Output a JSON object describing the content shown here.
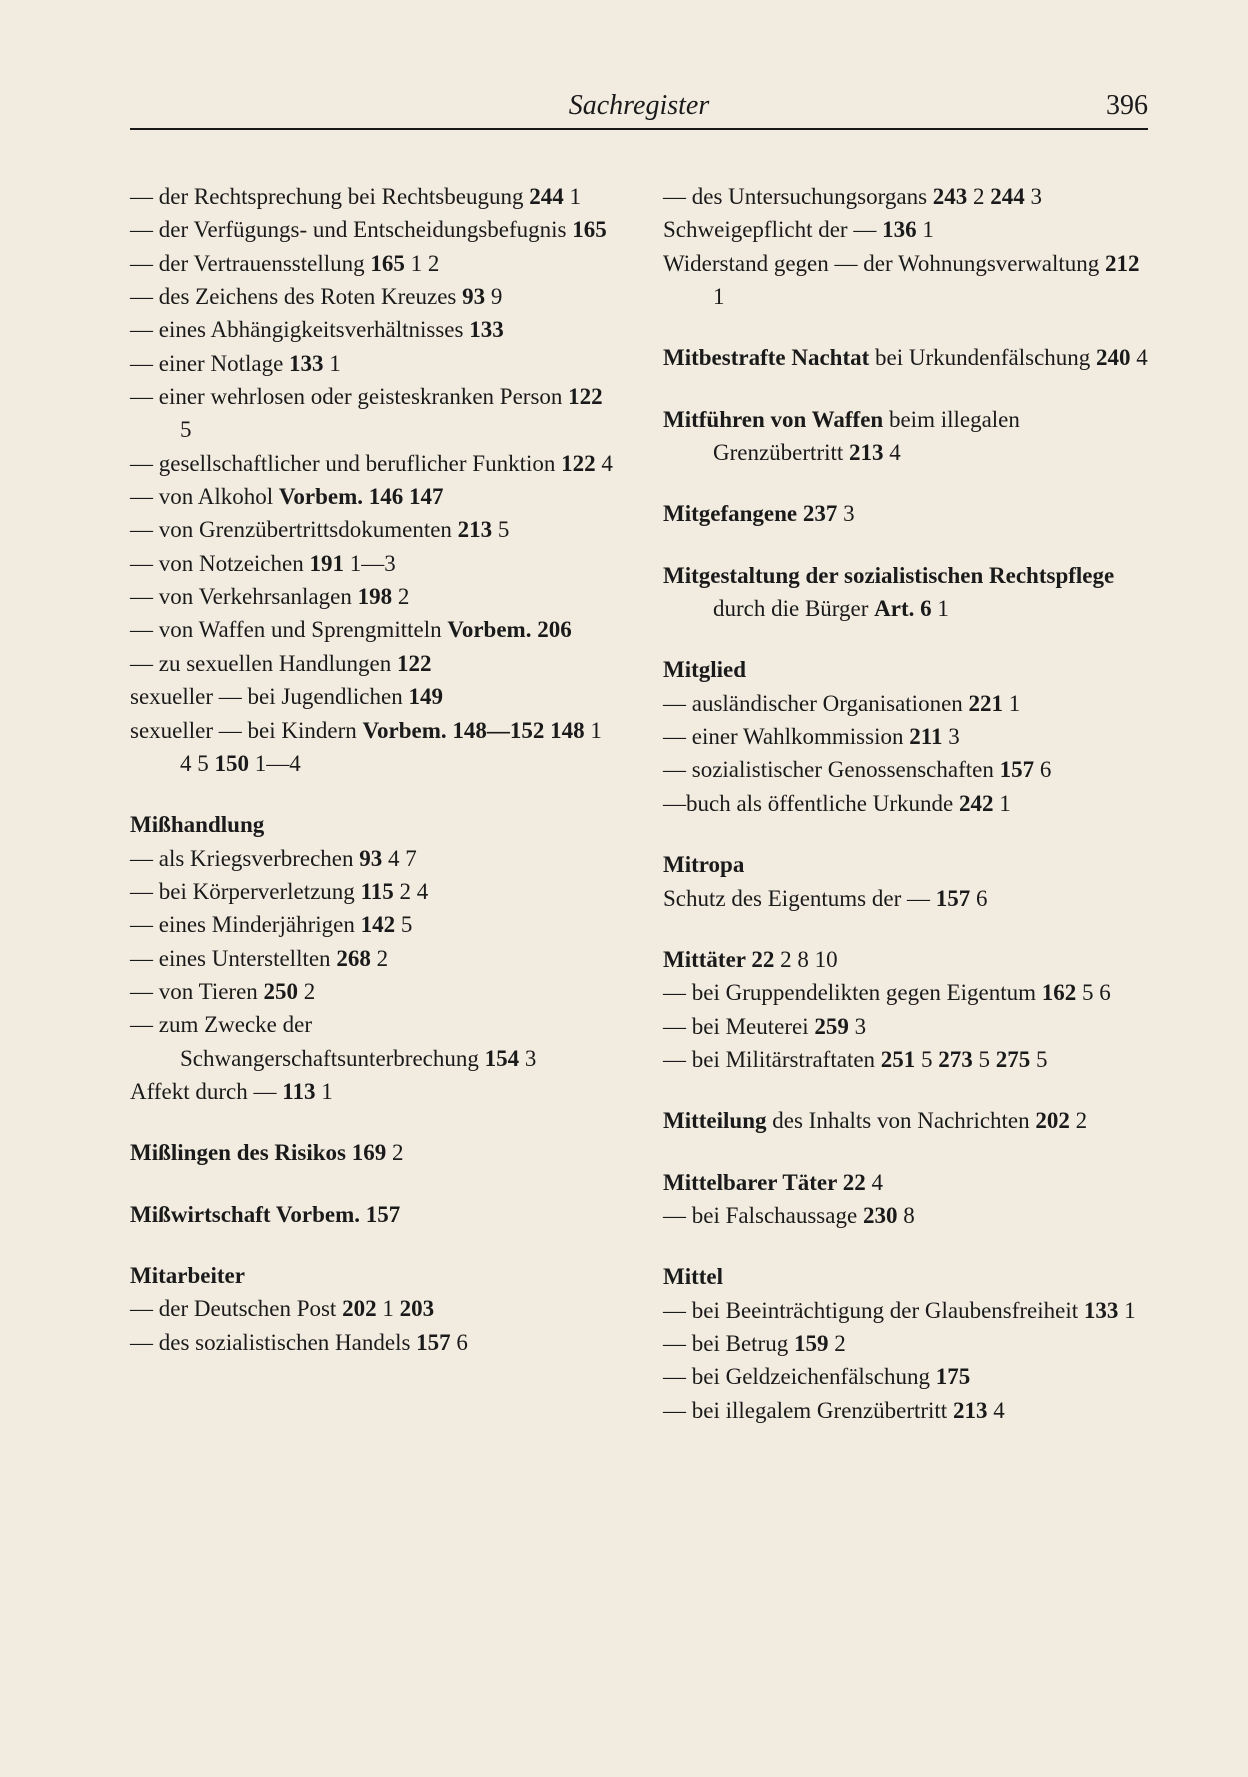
{
  "header": {
    "title": "Sachregister",
    "page_number": "396"
  },
  "left_column": [
    {
      "type": "dash",
      "segments": [
        {
          "t": "der Rechtsprechung bei Rechtsbeugung  "
        },
        {
          "t": "244",
          "b": true
        },
        {
          "t": " 1"
        }
      ]
    },
    {
      "type": "dash",
      "segments": [
        {
          "t": "der Verfügungs- und Entscheidungsbefugnis  "
        },
        {
          "t": "165",
          "b": true
        }
      ]
    },
    {
      "type": "dash",
      "segments": [
        {
          "t": "der Vertrauensstellung "
        },
        {
          "t": "165",
          "b": true
        },
        {
          "t": " 1 2"
        }
      ]
    },
    {
      "type": "dash",
      "segments": [
        {
          "t": "des Zeichens des Roten Kreuzes  "
        },
        {
          "t": "93",
          "b": true
        },
        {
          "t": " 9"
        }
      ]
    },
    {
      "type": "dash",
      "segments": [
        {
          "t": "eines Abhängigkeitsverhältnisses  "
        },
        {
          "t": "133",
          "b": true
        }
      ]
    },
    {
      "type": "dash",
      "segments": [
        {
          "t": "einer Notlage  "
        },
        {
          "t": "133",
          "b": true
        },
        {
          "t": " 1"
        }
      ]
    },
    {
      "type": "dash",
      "segments": [
        {
          "t": "einer wehrlosen oder geisteskranken Person  "
        },
        {
          "t": "122",
          "b": true
        },
        {
          "t": " 5"
        }
      ]
    },
    {
      "type": "dash",
      "segments": [
        {
          "t": "gesellschaftlicher und beruflicher Funktion  "
        },
        {
          "t": "122",
          "b": true
        },
        {
          "t": " 4"
        }
      ]
    },
    {
      "type": "dash",
      "segments": [
        {
          "t": "von Alkohol  "
        },
        {
          "t": "Vorbem. 146  147",
          "b": true
        }
      ]
    },
    {
      "type": "dash",
      "segments": [
        {
          "t": "von Grenzübertrittsdokumenten  "
        },
        {
          "t": "213",
          "b": true
        },
        {
          "t": " 5"
        }
      ]
    },
    {
      "type": "dash",
      "segments": [
        {
          "t": "von Notzeichen  "
        },
        {
          "t": "191",
          "b": true
        },
        {
          "t": " 1—3"
        }
      ]
    },
    {
      "type": "dash",
      "segments": [
        {
          "t": "von Verkehrsanlagen  "
        },
        {
          "t": "198",
          "b": true
        },
        {
          "t": "  2"
        }
      ]
    },
    {
      "type": "dash",
      "segments": [
        {
          "t": "von Waffen und Sprengmitteln "
        },
        {
          "t": "Vorbem. 206",
          "b": true
        }
      ]
    },
    {
      "type": "dash",
      "segments": [
        {
          "t": "zu sexuellen Handlungen  "
        },
        {
          "t": "122",
          "b": true
        }
      ]
    },
    {
      "type": "flush",
      "segments": [
        {
          "t": "sexueller — bei Jugendlichen  "
        },
        {
          "t": "149",
          "b": true
        }
      ]
    },
    {
      "type": "plain",
      "segments": [
        {
          "t": "sexueller — bei Kindern "
        },
        {
          "t": "Vorbem. 148—152  148",
          "b": true
        },
        {
          "t": " 1 4 5  "
        },
        {
          "t": "150",
          "b": true
        },
        {
          "t": " 1—4"
        }
      ]
    },
    {
      "type": "heading",
      "segments": [
        {
          "t": "Mißhandlung",
          "b": true
        }
      ]
    },
    {
      "type": "dash",
      "segments": [
        {
          "t": "als Kriegsverbrechen  "
        },
        {
          "t": "93",
          "b": true
        },
        {
          "t": " 4 7"
        }
      ]
    },
    {
      "type": "dash",
      "segments": [
        {
          "t": "bei Körperverletzung  "
        },
        {
          "t": "115",
          "b": true
        },
        {
          "t": " 2 4"
        }
      ]
    },
    {
      "type": "dash",
      "segments": [
        {
          "t": "eines Minderjährigen  "
        },
        {
          "t": "142",
          "b": true
        },
        {
          "t": " 5"
        }
      ]
    },
    {
      "type": "dash",
      "segments": [
        {
          "t": "eines Unterstellten  "
        },
        {
          "t": "268",
          "b": true
        },
        {
          "t": " 2"
        }
      ]
    },
    {
      "type": "dash",
      "segments": [
        {
          "t": "von Tieren  "
        },
        {
          "t": "250",
          "b": true
        },
        {
          "t": " 2"
        }
      ]
    },
    {
      "type": "dash",
      "segments": [
        {
          "t": "zum Zwecke der Schwangerschaftsunterbrechung  "
        },
        {
          "t": "154",
          "b": true
        },
        {
          "t": " 3"
        }
      ]
    },
    {
      "type": "flush",
      "segments": [
        {
          "t": "Affekt durch —  "
        },
        {
          "t": "113",
          "b": true
        },
        {
          "t": " 1"
        }
      ]
    },
    {
      "type": "heading",
      "segments": [
        {
          "t": "Mißlingen des Risikos  169",
          "b": true
        },
        {
          "t": "   2"
        }
      ]
    },
    {
      "type": "heading",
      "segments": [
        {
          "t": "Mißwirtschaft    Vorbem. 157",
          "b": true
        }
      ]
    },
    {
      "type": "heading",
      "segments": [
        {
          "t": "Mitarbeiter",
          "b": true
        }
      ]
    },
    {
      "type": "dash",
      "segments": [
        {
          "t": "der Deutschen Post  "
        },
        {
          "t": "202",
          "b": true
        },
        {
          "t": " 1  "
        },
        {
          "t": "203",
          "b": true
        }
      ]
    },
    {
      "type": "dash",
      "segments": [
        {
          "t": "des sozialistischen Handels "
        },
        {
          "t": "157",
          "b": true
        },
        {
          "t": " 6"
        }
      ]
    }
  ],
  "right_column": [
    {
      "type": "dash",
      "segments": [
        {
          "t": "des Untersuchungsorgans "
        },
        {
          "t": "243",
          "b": true
        },
        {
          "t": " 2  "
        },
        {
          "t": "244",
          "b": true
        },
        {
          "t": " 3"
        }
      ]
    },
    {
      "type": "flush",
      "segments": [
        {
          "t": "Schweigepflicht der —  "
        },
        {
          "t": "136",
          "b": true
        },
        {
          "t": " 1"
        }
      ]
    },
    {
      "type": "plain",
      "segments": [
        {
          "t": "Widerstand gegen — der Wohnungsverwaltung  "
        },
        {
          "t": "212",
          "b": true
        },
        {
          "t": " 1"
        }
      ]
    },
    {
      "type": "heading",
      "segments": [
        {
          "t": "Mitbestrafte Nachtat",
          "b": true
        },
        {
          "t": " bei Urkundenfälschung    "
        },
        {
          "t": "240",
          "b": true
        },
        {
          "t": " 4"
        }
      ],
      "hang": true
    },
    {
      "type": "heading",
      "segments": [
        {
          "t": "Mitführen von Waffen",
          "b": true
        },
        {
          "t": " beim illegalen Grenzübertritt  "
        },
        {
          "t": "213",
          "b": true
        },
        {
          "t": " 4"
        }
      ],
      "hang": true
    },
    {
      "type": "heading",
      "segments": [
        {
          "t": "Mitgefangene  237",
          "b": true
        },
        {
          "t": " 3"
        }
      ]
    },
    {
      "type": "heading",
      "segments": [
        {
          "t": "Mitgestaltung  der  sozialistischen Rechtspflege",
          "b": true
        },
        {
          "t": "  durch  die Bürger  "
        },
        {
          "t": "Art. 6",
          "b": true
        },
        {
          "t": " 1"
        }
      ],
      "hang": true
    },
    {
      "type": "heading",
      "segments": [
        {
          "t": "Mitglied",
          "b": true
        }
      ]
    },
    {
      "type": "dash",
      "segments": [
        {
          "t": "ausländischer Organisationen "
        },
        {
          "t": "221",
          "b": true
        },
        {
          "t": " 1"
        }
      ]
    },
    {
      "type": "dash",
      "segments": [
        {
          "t": "einer Wahlkommission  "
        },
        {
          "t": "211",
          "b": true
        },
        {
          "t": "  3"
        }
      ]
    },
    {
      "type": "dash",
      "segments": [
        {
          "t": "sozialistischer Genossenschaften  "
        },
        {
          "t": "157",
          "b": true
        },
        {
          "t": " 6"
        }
      ]
    },
    {
      "type": "plain",
      "segments": [
        {
          "t": "—buch als öffentliche Urkunde "
        },
        {
          "t": "242",
          "b": true
        },
        {
          "t": " 1"
        }
      ]
    },
    {
      "type": "heading",
      "segments": [
        {
          "t": "Mitropa",
          "b": true
        }
      ]
    },
    {
      "type": "plain",
      "segments": [
        {
          "t": "Schutz des Eigentums der — "
        },
        {
          "t": "157",
          "b": true
        },
        {
          "t": " 6"
        }
      ]
    },
    {
      "type": "heading",
      "segments": [
        {
          "t": "Mittäter  22",
          "b": true
        },
        {
          "t": " 2 8 10"
        }
      ]
    },
    {
      "type": "dash",
      "segments": [
        {
          "t": "bei Gruppendelikten gegen Eigentum  "
        },
        {
          "t": "162",
          "b": true
        },
        {
          "t": " 5 6"
        }
      ]
    },
    {
      "type": "dash",
      "segments": [
        {
          "t": "bei Meuterei  "
        },
        {
          "t": "259",
          "b": true
        },
        {
          "t": " 3"
        }
      ]
    },
    {
      "type": "dash",
      "segments": [
        {
          "t": "bei Militärstraftaten  "
        },
        {
          "t": "251",
          "b": true
        },
        {
          "t": " 5 "
        },
        {
          "t": "273",
          "b": true
        },
        {
          "t": " 5  "
        },
        {
          "t": "275",
          "b": true
        },
        {
          "t": " 5"
        }
      ]
    },
    {
      "type": "heading",
      "segments": [
        {
          "t": "Mitteilung",
          "b": true
        },
        {
          "t": " des Inhalts von Nachrichten  "
        },
        {
          "t": "202",
          "b": true
        },
        {
          "t": " 2"
        }
      ],
      "hang": true
    },
    {
      "type": "heading",
      "segments": [
        {
          "t": "Mittelbarer Täter  22",
          "b": true
        },
        {
          "t": "  4"
        }
      ]
    },
    {
      "type": "dash",
      "segments": [
        {
          "t": "bei Falschaussage  "
        },
        {
          "t": "230",
          "b": true
        },
        {
          "t": " 8"
        }
      ]
    },
    {
      "type": "heading",
      "segments": [
        {
          "t": "Mittel",
          "b": true
        }
      ]
    },
    {
      "type": "dash",
      "segments": [
        {
          "t": "bei Beeinträchtigung der Glaubensfreiheit  "
        },
        {
          "t": "133",
          "b": true
        },
        {
          "t": " 1"
        }
      ]
    },
    {
      "type": "dash",
      "segments": [
        {
          "t": "bei Betrug  "
        },
        {
          "t": "159",
          "b": true
        },
        {
          "t": " 2"
        }
      ]
    },
    {
      "type": "dash",
      "segments": [
        {
          "t": "bei Geldzeichenfälschung  "
        },
        {
          "t": "175",
          "b": true
        }
      ]
    },
    {
      "type": "dash",
      "segments": [
        {
          "t": "bei illegalem Grenzübertritt "
        },
        {
          "t": "213",
          "b": true
        },
        {
          "t": "  4"
        }
      ]
    }
  ]
}
